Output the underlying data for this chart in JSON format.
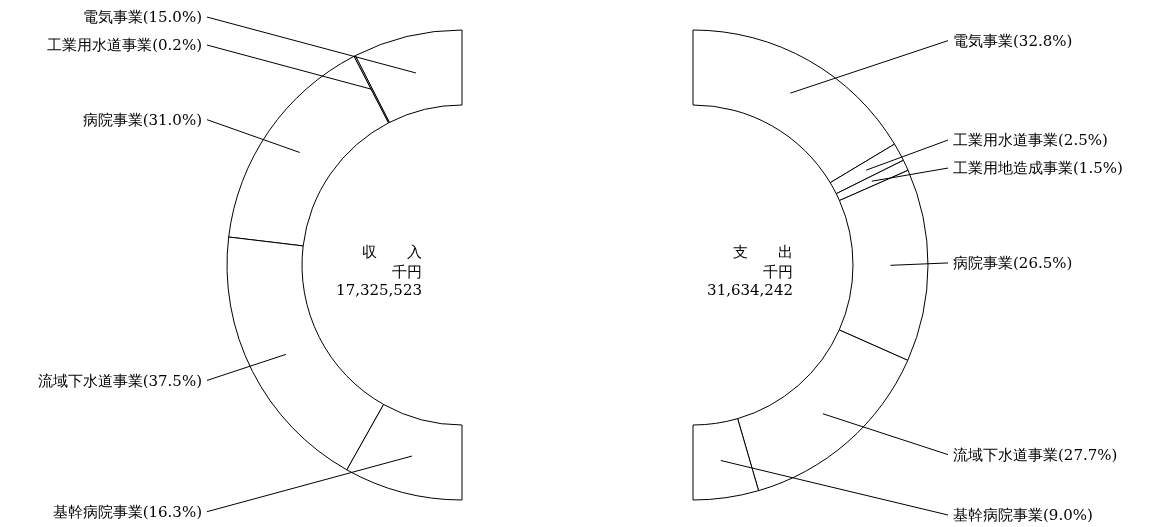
{
  "chart_data": [
    {
      "type": "donut",
      "title": "収　　入",
      "annotations": [
        "千円",
        "17,325,523"
      ],
      "categories": [
        "電気事業",
        "工業用水道事業",
        "病院事業",
        "流域下水道事業",
        "基幹病院事業"
      ],
      "values": [
        15.0,
        0.2,
        31.0,
        37.5,
        16.3
      ],
      "value_labels": [
        "(15.0%)",
        "(0.2%)",
        "(31.0%)",
        "(37.5%)",
        "(16.3%)"
      ],
      "colors": [
        "#ffffff",
        "#ffffff",
        "#ffffff",
        "#ffffff",
        "#ffffff"
      ]
    },
    {
      "type": "donut",
      "title": "支　　出",
      "annotations": [
        "千円",
        "31,634,242"
      ],
      "categories": [
        "電気事業",
        "工業用水道事業",
        "工業用地造成事業",
        "病院事業",
        "流域下水道事業",
        "基幹病院事業"
      ],
      "values": [
        32.8,
        2.5,
        1.5,
        26.5,
        27.7,
        9.0
      ],
      "value_labels": [
        "(32.8%)",
        "(2.5%)",
        "(1.5%)",
        "(26.5%)",
        "(27.7%)",
        "(9.0%)"
      ],
      "colors": [
        "#ffffff",
        "#ffffff",
        "#ffffff",
        "#ffffff",
        "#ffffff",
        "#ffffff"
      ]
    }
  ]
}
